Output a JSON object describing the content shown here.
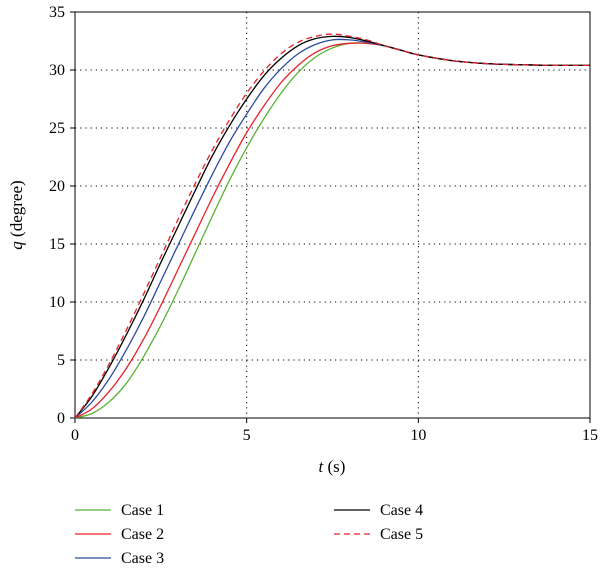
{
  "chart_data": {
    "type": "line",
    "xlabel_var": "t",
    "xlabel_unit": " (s)",
    "ylabel_var": "q",
    "ylabel_unit": " (degree)",
    "xlim": [
      0,
      15
    ],
    "ylim": [
      0,
      35
    ],
    "xticks": [
      0,
      5,
      10,
      15
    ],
    "yticks": [
      0,
      5,
      10,
      15,
      20,
      25,
      30,
      35
    ],
    "grid": "dotted",
    "legend_position": "bottom",
    "series": [
      {
        "name": "Case 1",
        "color": "#5ab233",
        "dash": "solid",
        "x": [
          0,
          0.5,
          1,
          1.5,
          2,
          2.5,
          3,
          3.5,
          4,
          4.5,
          5,
          5.5,
          6,
          6.5,
          7,
          7.5,
          8,
          8.5,
          9,
          9.5,
          10,
          11,
          12,
          13,
          14,
          15
        ],
        "y": [
          0,
          0.4,
          1.4,
          3.0,
          5.3,
          8.0,
          11.0,
          14.2,
          17.4,
          20.5,
          23.3,
          25.8,
          28.0,
          29.8,
          31.1,
          31.9,
          32.3,
          32.3,
          32.1,
          31.7,
          31.3,
          30.8,
          30.55,
          30.45,
          30.4,
          30.4
        ]
      },
      {
        "name": "Case 2",
        "color": "#e8212a",
        "dash": "solid",
        "x": [
          0,
          0.5,
          1,
          1.5,
          2,
          2.5,
          3,
          3.5,
          4,
          4.5,
          5,
          5.5,
          6,
          6.5,
          7,
          7.5,
          8,
          8.5,
          9,
          9.5,
          10,
          11,
          12,
          13,
          14,
          15
        ],
        "y": [
          0,
          0.8,
          2.3,
          4.3,
          6.8,
          9.7,
          12.8,
          15.9,
          19.0,
          21.9,
          24.6,
          26.9,
          28.9,
          30.4,
          31.5,
          32.1,
          32.3,
          32.3,
          32.1,
          31.7,
          31.3,
          30.8,
          30.55,
          30.45,
          30.4,
          30.4
        ]
      },
      {
        "name": "Case 3",
        "color": "#2c4aa2",
        "dash": "solid",
        "x": [
          0,
          0.5,
          1,
          1.5,
          2,
          2.5,
          3,
          3.5,
          4,
          4.5,
          5,
          5.5,
          6,
          6.5,
          7,
          7.5,
          8,
          8.5,
          9,
          9.5,
          10,
          11,
          12,
          13,
          14,
          15
        ],
        "y": [
          0,
          1.4,
          3.4,
          5.9,
          8.7,
          11.8,
          14.9,
          18.0,
          21.0,
          23.8,
          26.2,
          28.4,
          30.1,
          31.4,
          32.2,
          32.6,
          32.6,
          32.4,
          32.1,
          31.7,
          31.3,
          30.8,
          30.55,
          30.45,
          30.4,
          30.4
        ]
      },
      {
        "name": "Case 4",
        "color": "#000000",
        "dash": "solid",
        "x": [
          0,
          0.5,
          1,
          1.5,
          2,
          2.5,
          3,
          3.5,
          4,
          4.5,
          5,
          5.5,
          6,
          6.5,
          7,
          7.5,
          8,
          8.5,
          9,
          9.5,
          10,
          11,
          12,
          13,
          14,
          15
        ],
        "y": [
          0,
          1.9,
          4.4,
          7.2,
          10.2,
          13.4,
          16.5,
          19.6,
          22.6,
          25.2,
          27.5,
          29.5,
          31.0,
          32.1,
          32.7,
          32.9,
          32.8,
          32.5,
          32.1,
          31.7,
          31.3,
          30.8,
          30.55,
          30.45,
          30.4,
          30.4
        ]
      },
      {
        "name": "Case 5",
        "color": "#e8212a",
        "dash": "dashed",
        "x": [
          0,
          0.5,
          1,
          1.5,
          2,
          2.5,
          3,
          3.5,
          4,
          4.5,
          5,
          5.5,
          6,
          6.5,
          7,
          7.5,
          8,
          8.5,
          9,
          9.5,
          10,
          11,
          12,
          13,
          14,
          15
        ],
        "y": [
          0,
          2.1,
          4.7,
          7.6,
          10.7,
          13.9,
          17.1,
          20.2,
          23.1,
          25.7,
          28.0,
          29.9,
          31.4,
          32.4,
          32.9,
          33.1,
          32.9,
          32.6,
          32.1,
          31.7,
          31.3,
          30.8,
          30.55,
          30.45,
          30.4,
          30.4
        ]
      }
    ]
  }
}
